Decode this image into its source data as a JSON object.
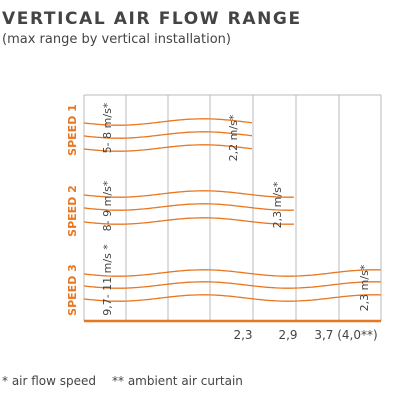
{
  "title": "VERTICAL AIR FLOW RANGE",
  "subtitle": "(max range by vertical installation)",
  "rows": [
    {
      "label": "SPEED 1",
      "start_speed": "5- 8 m/s*",
      "end_speed": "2,2 m/s*"
    },
    {
      "label": "SPEED 2",
      "start_speed": "8- 9 m/s*",
      "end_speed": "2,3 m/s*"
    },
    {
      "label": "SPEED 3",
      "start_speed": "9,7- 11 m/s *",
      "end_speed": "2,3 m/s*"
    }
  ],
  "distance_labels": [
    "2,3",
    "2,9",
    "3,7 (4,0**)"
  ],
  "footnotes": [
    "* air flow speed",
    "** ambient air curtain"
  ]
}
